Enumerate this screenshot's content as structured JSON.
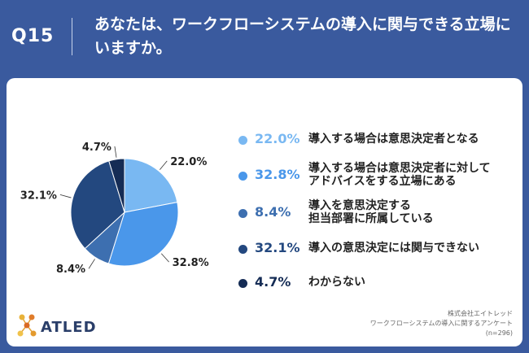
{
  "header": {
    "question_number": "Q15",
    "question_text": "あなたは、ワークフローシステムの導入に関与できる立場にいますか。"
  },
  "chart_data": {
    "type": "pie",
    "title": "",
    "series": [
      {
        "label": "導入する場合は意思決定者となる",
        "value": 22.0,
        "pct_label": "22.0%",
        "color": "#79b8f2"
      },
      {
        "label": "導入する場合は意思決定者に対して\nアドバイスをする立場にある",
        "value": 32.8,
        "pct_label": "32.8%",
        "color": "#4a97ea"
      },
      {
        "label": "導入を意思決定する\n担当部署に所属している",
        "value": 8.4,
        "pct_label": "8.4%",
        "color": "#3d6fb0"
      },
      {
        "label": "導入の意思決定には関与できない",
        "value": 32.1,
        "pct_label": "32.1%",
        "color": "#23487f"
      },
      {
        "label": "わからない",
        "value": 4.7,
        "pct_label": "4.7%",
        "color": "#152c55"
      }
    ],
    "legend_placement": "right"
  },
  "logo": {
    "brand": "ATLED",
    "dot_colors": [
      "#e8b23a",
      "#e07c2a",
      "#d96a24",
      "#f0c24b",
      "#e39a2e"
    ]
  },
  "footer": {
    "company": "株式会社エイトレッド",
    "survey": "ワークフローシステムの導入に関するアンケート",
    "n": "(n=296)"
  },
  "colors": {
    "background": "#3a5a9e",
    "card": "#ffffff"
  }
}
